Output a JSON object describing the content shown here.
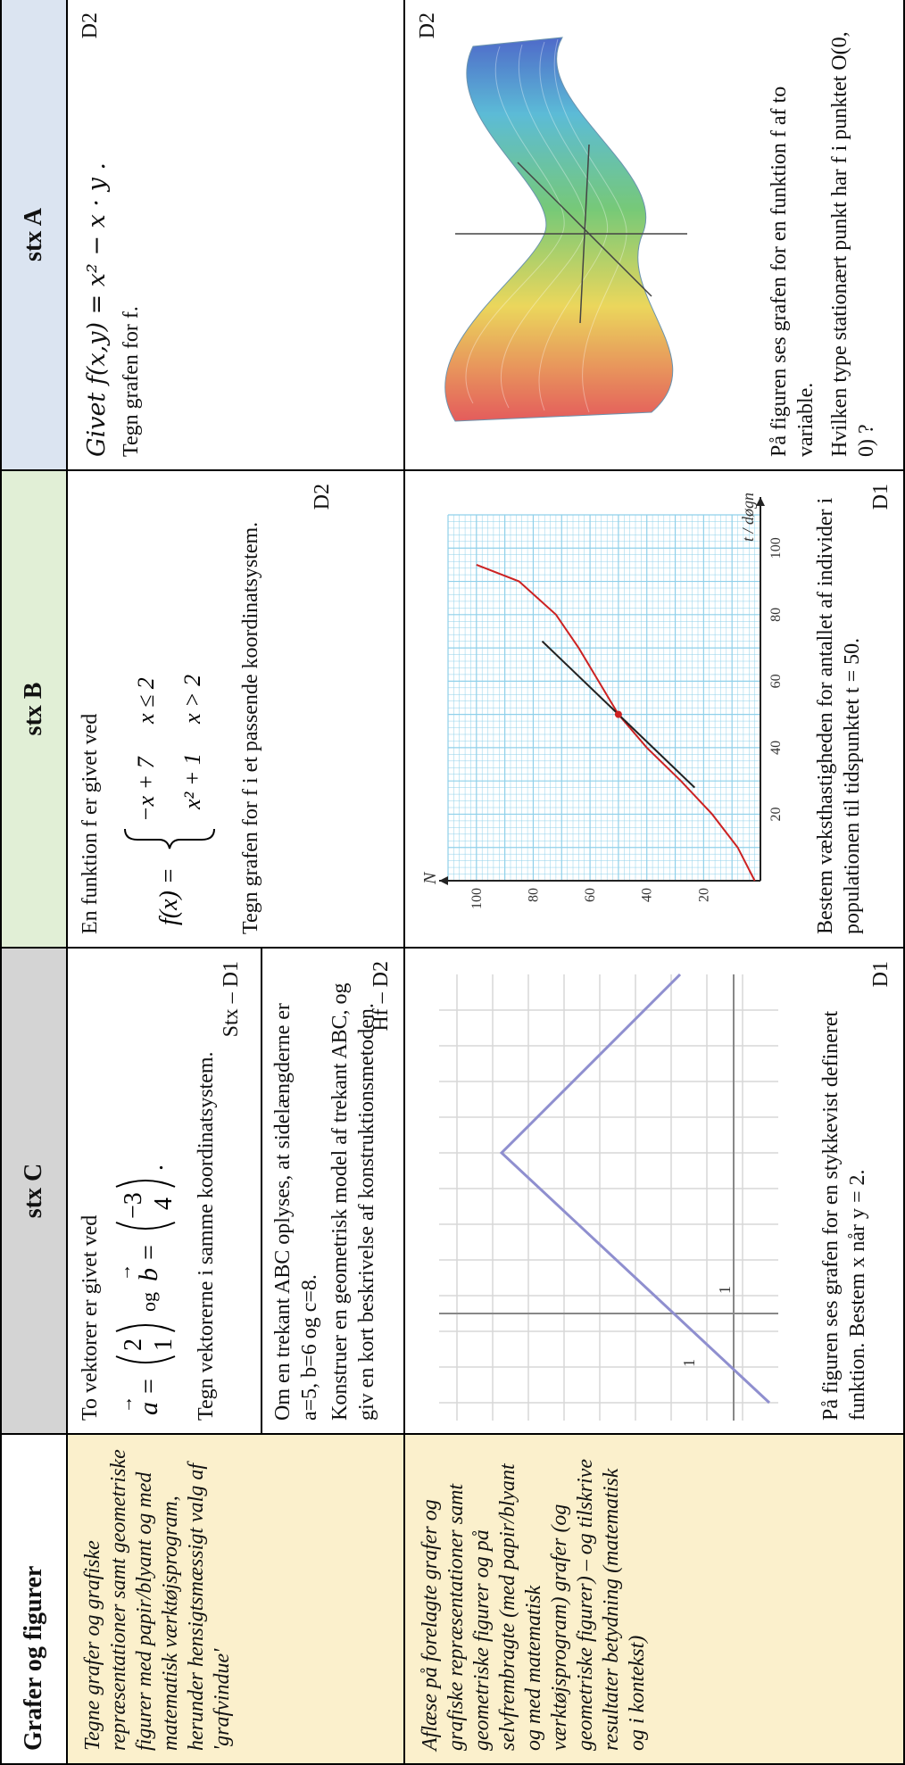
{
  "header": {
    "col0": "Grafer og figurer",
    "col1": "stx C",
    "col2": "stx B",
    "col3": "stx A"
  },
  "row1": {
    "desc": "Tegne grafer og grafiske repræsentationer samt geometriske figurer med papir/blyant og med matematisk værktøjsprogram, herunder hensigtsmæssigt valg af 'grafvindue'",
    "c": {
      "intro": "To vektorer er givet ved",
      "a_label": "a",
      "a_vec": [
        "2",
        "1"
      ],
      "og": "og",
      "b_label": "b",
      "b_vec": [
        "−3",
        "4"
      ],
      "task": "Tegn vektorerne i samme koordinatsystem.",
      "ref": "Stx – D1",
      "part2_line1": "Om en trekant ABC oplyses, at sidelængderne er a=5, b=6 og c=8.",
      "part2_line2": "Konstruer en geometrisk model af trekant ABC, og giv en kort beskrivelse af konstruktionsmetoden.",
      "ref2": "Hf – D2"
    },
    "b": {
      "intro": "En funktion f er givet ved",
      "fx": "f(x) =",
      "case1_expr": "−x + 7",
      "case1_cond": "x ≤ 2",
      "case2_expr": "x² + 1",
      "case2_cond": "x > 2",
      "task": "Tegn grafen for f i et passende koordinatsystem.",
      "ref": "D2"
    },
    "a": {
      "given": "Givet  f(x,y) = x² − x · y .",
      "task": "Tegn grafen for f.",
      "ref": "D2"
    }
  },
  "row2": {
    "desc": "Aflæse på forelagte grafer og grafiske repræsentationer samt geometriske figurer og på selvfrembragte (med papir/blyant og med matematisk værktøjsprogram) grafer (og geometriske figurer) – og tilskrive resultater betydning (matematisk og i kontekst)",
    "c": {
      "label_x": "1",
      "label_y": "1",
      "text": "På figuren ses grafen for en stykkevist defineret funktion. Bestem x når  y = 2.",
      "ref": "D1"
    },
    "b": {
      "y_axis_label": "N",
      "x_axis_label": "t / døgn",
      "y_ticks": [
        "20",
        "40",
        "60",
        "80",
        "100"
      ],
      "x_ticks": [
        "20",
        "40",
        "60",
        "80",
        "100"
      ],
      "text": "Bestem væksthastigheden for antallet af individer i populationen til tidspunktet  t = 50.",
      "ref": "D1"
    },
    "a": {
      "text1": "På figuren ses grafen for en funktion f af to variable.",
      "text2": "Hvilken type stationært punkt har f i punktet O(0, 0) ?",
      "ref": "D2"
    }
  },
  "chart_data": {
    "type": "line",
    "xlabel": "t / døgn",
    "ylabel": "N",
    "xlim": [
      0,
      110
    ],
    "ylim": [
      0,
      110
    ],
    "x_ticks": [
      20,
      40,
      60,
      80,
      100
    ],
    "y_ticks": [
      20,
      40,
      60,
      80,
      100
    ],
    "grid": true,
    "series": [
      {
        "x": [
          0,
          10,
          20,
          30,
          40,
          50,
          60,
          70,
          80,
          90,
          95
        ],
        "y": [
          2,
          8,
          17,
          28,
          40,
          50,
          57,
          64,
          72,
          85,
          100
        ]
      }
    ],
    "highlight_point": {
      "x": 50,
      "y": 50
    },
    "tangent_slope": 1.22,
    "colors": {
      "curve": "#cc2222",
      "grid": "#8fd0ea",
      "tangent": "#222222"
    }
  }
}
